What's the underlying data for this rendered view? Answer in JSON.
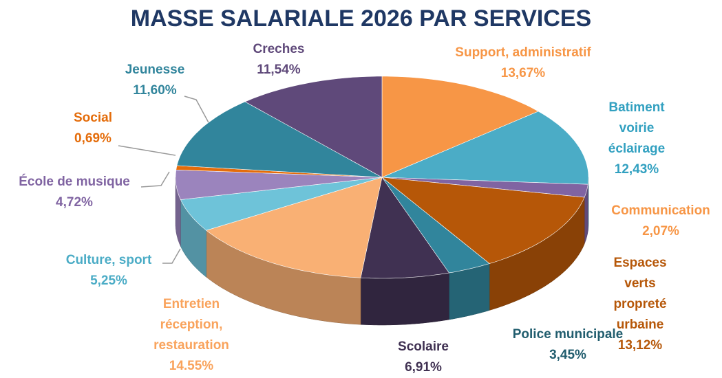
{
  "chart_data": {
    "type": "pie3d",
    "title": "MASSE SALARIALE 2026 PAR SERVICES",
    "categories": [
      "Support, administratif",
      "Batiment voirie\néclairage",
      "Communication",
      "Espaces verts\npropreté urbaine",
      "Police municipale",
      "Scolaire",
      "Entretien\nréception,\nrestauration",
      "Culture, sport",
      "École de musique",
      "Social",
      "Jeunesse",
      "Creches"
    ],
    "values": [
      13.67,
      12.43,
      2.07,
      13.12,
      3.45,
      6.91,
      14.55,
      5.25,
      4.72,
      0.69,
      11.6,
      11.54
    ],
    "value_labels": [
      "13,67%",
      "12,43%",
      "2,07%",
      "13,12%",
      "3,45%",
      "6,91%",
      "14.55%",
      "5,25%",
      "4,72%",
      "0,69%",
      "11,60%",
      "11,54%"
    ],
    "colors": [
      "#f79646",
      "#4bacc6",
      "#8064a2",
      "#b65708",
      "#31859c",
      "#403152",
      "#f9b074",
      "#6ec3d9",
      "#9b84bd",
      "#e46c0a",
      "#31859c",
      "#5f497a"
    ],
    "label_colors": [
      "#f79646",
      "#31a0c0",
      "#f79646",
      "#b65708",
      "#215d6e",
      "#403152",
      "#f9a35c",
      "#4bacc6",
      "#8064a2",
      "#e46c0a",
      "#31859c",
      "#5f497a"
    ]
  }
}
